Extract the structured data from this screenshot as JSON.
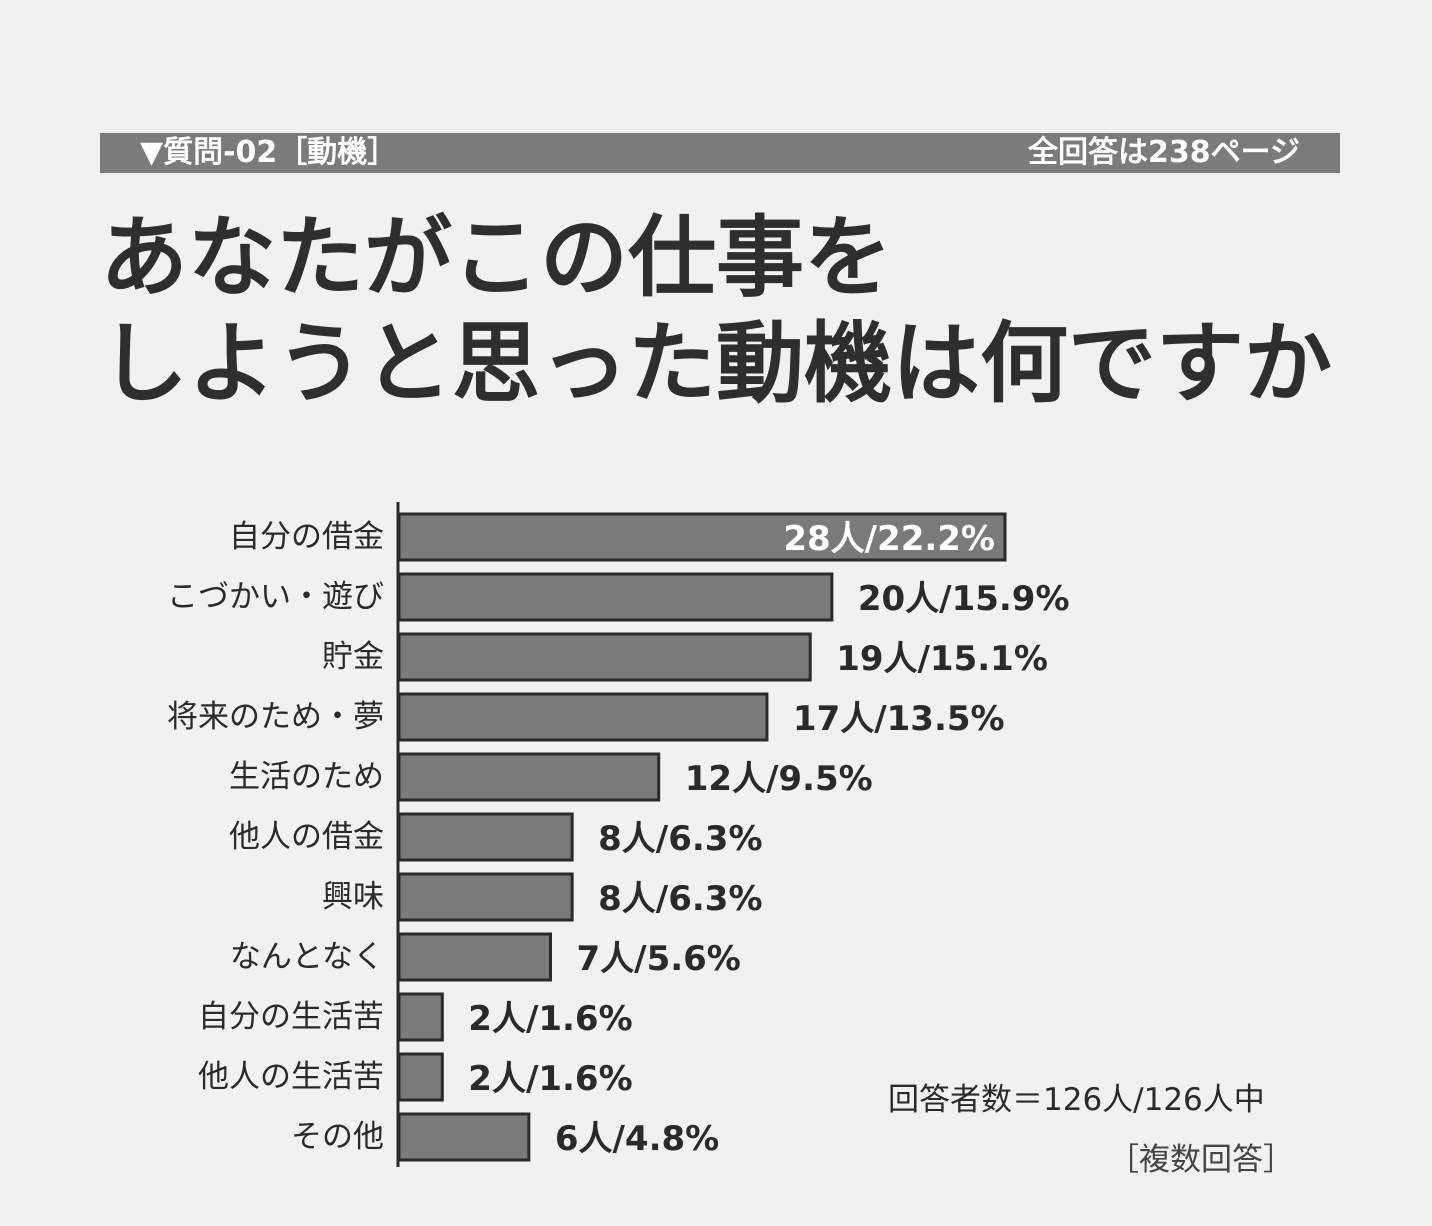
{
  "header": {
    "question": "▼質問-02［動機］",
    "all_answers": "全回答は238ページ"
  },
  "title": {
    "line1": "あなたがこの仕事を",
    "line2": "しようと思った動機は何ですか"
  },
  "colors": {
    "bar": "#7a7a7a",
    "bar_border": "#2a2a2a",
    "header_bg": "#7b7b7b"
  },
  "chart_data": {
    "type": "bar",
    "orientation": "horizontal",
    "categories": [
      "自分の借金",
      "こづかい・遊び",
      "貯金",
      "将来のため・夢",
      "生活のため",
      "他人の借金",
      "興味",
      "なんとなく",
      "自分の生活苦",
      "他人の生活苦",
      "その他"
    ],
    "values": [
      28,
      20,
      19,
      17,
      12,
      8,
      8,
      7,
      2,
      2,
      6
    ],
    "percentages": [
      22.2,
      15.9,
      15.1,
      13.5,
      9.5,
      6.3,
      6.3,
      5.6,
      1.6,
      1.6,
      4.8
    ],
    "data_labels": [
      "28人/22.2%",
      "20人/15.9%",
      "19人/15.1%",
      "17人/13.5%",
      "12人/9.5%",
      "8人/6.3%",
      "8人/6.3%",
      "7人/5.6%",
      "2人/1.6%",
      "2人/1.6%",
      "6人/4.8%"
    ],
    "unit": "人",
    "xlim": [
      0,
      28
    ]
  },
  "notes": {
    "respondents": "回答者数＝126人/126人中",
    "multiple": "［複数回答］"
  }
}
